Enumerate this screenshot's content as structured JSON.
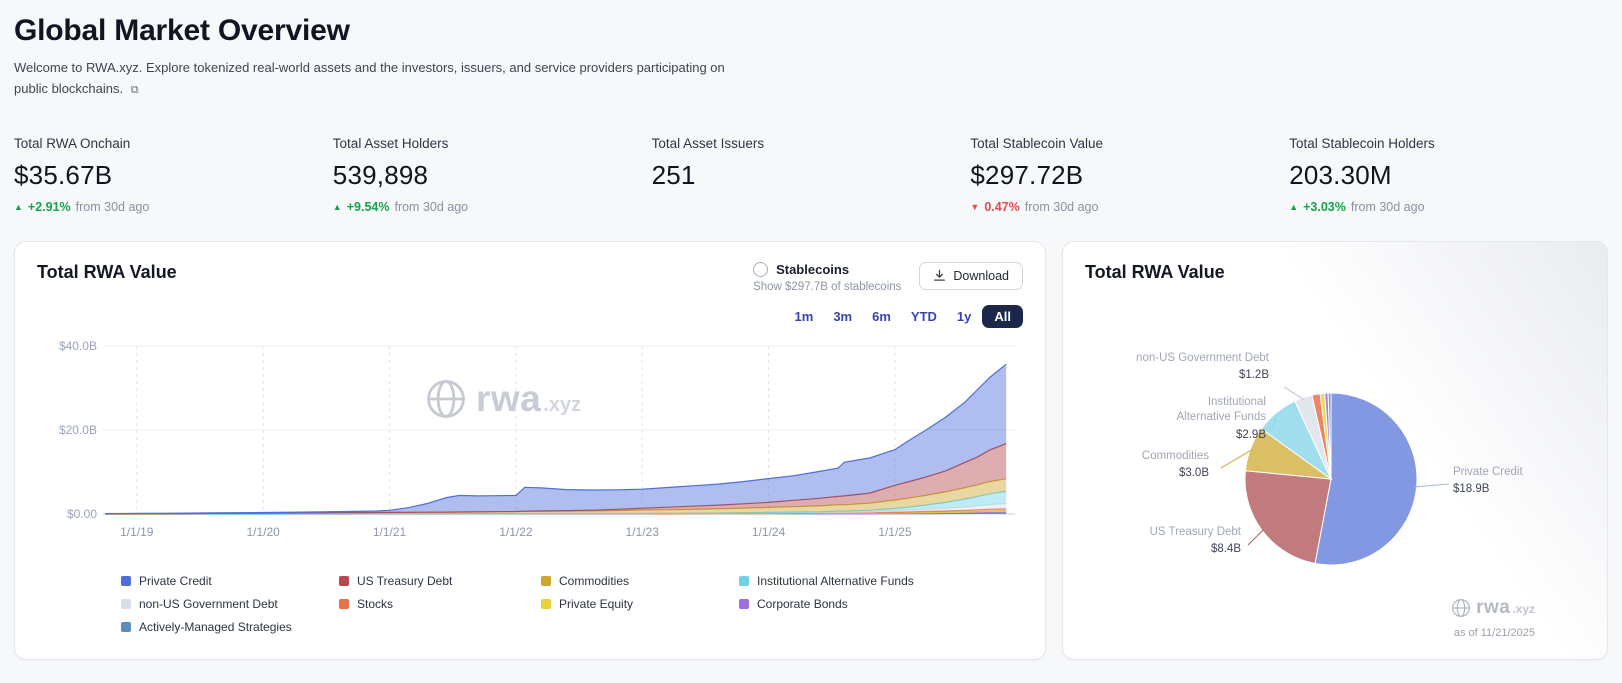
{
  "page": {
    "title": "Global Market Overview",
    "subtitle_line1": "Welcome to RWA.xyz. Explore tokenized real-world assets and the investors, issuers, and service providers participating on",
    "subtitle_line2": "public blockchains."
  },
  "watermark": {
    "brand": "rwa",
    "tld": ".xyz"
  },
  "stats": [
    {
      "label": "Total RWA Onchain",
      "value": "$35.67B",
      "delta": "+2.91%",
      "delta_dir": "up",
      "delta_suffix": "from 30d ago"
    },
    {
      "label": "Total Asset Holders",
      "value": "539,898",
      "delta": "+9.54%",
      "delta_dir": "up",
      "delta_suffix": "from 30d ago"
    },
    {
      "label": "Total Asset Issuers",
      "value": "251",
      "delta": "",
      "delta_dir": "none",
      "delta_suffix": ""
    },
    {
      "label": "Total Stablecoin Value",
      "value": "$297.72B",
      "delta": "0.47%",
      "delta_dir": "down",
      "delta_suffix": "from 30d ago"
    },
    {
      "label": "Total Stablecoin Holders",
      "value": "203.30M",
      "delta": "+3.03%",
      "delta_dir": "up",
      "delta_suffix": "from 30d ago"
    }
  ],
  "left_card": {
    "title": "Total RWA Value",
    "stablecoins_label": "Stablecoins",
    "stablecoins_sub": "Show $297.7B of stablecoins",
    "download_label": "Download",
    "ranges": [
      "1m",
      "3m",
      "6m",
      "YTD",
      "1y",
      "All"
    ],
    "active_range": "All"
  },
  "right_card": {
    "title": "Total RWA Value",
    "as_of": "as of 11/21/2025"
  },
  "legend_columns": [
    [
      {
        "label": "Private Credit",
        "color": "#4e6fd9"
      },
      {
        "label": "non-US Government Debt",
        "color": "#d9dee8"
      },
      {
        "label": "Actively-Managed Strategies",
        "color": "#5d8cbe"
      }
    ],
    [
      {
        "label": "US Treasury Debt",
        "color": "#b5494e"
      },
      {
        "label": "Stocks",
        "color": "#e8714b"
      }
    ],
    [
      {
        "label": "Commodities",
        "color": "#cfa72e"
      },
      {
        "label": "Private Equity",
        "color": "#e8d23c"
      }
    ],
    [
      {
        "label": "Institutional Alternative Funds",
        "color": "#72d2e8"
      },
      {
        "label": "Corporate Bonds",
        "color": "#9a6fe0"
      }
    ]
  ],
  "chart_data": [
    {
      "type": "area",
      "title": "Total RWA Value",
      "stacked": true,
      "grid": true,
      "ylabel": "",
      "xlabel": "",
      "ylim": [
        0,
        40
      ],
      "xlim": [
        2018.78,
        2025.95
      ],
      "y_ticks": [
        "$0.00",
        "$20.0B",
        "$40.0B"
      ],
      "y_tick_values": [
        0,
        20,
        40
      ],
      "x_ticks": [
        "1/1/19",
        "1/1/20",
        "1/1/21",
        "1/1/22",
        "1/1/23",
        "1/1/24",
        "1/1/25"
      ],
      "x_tick_years": [
        2019,
        2020,
        2021,
        2022,
        2023,
        2024,
        2025
      ],
      "x": [
        2018.75,
        2019.0,
        2019.3,
        2019.6,
        2020.0,
        2020.3,
        2020.6,
        2020.9,
        2021.0,
        2021.15,
        2021.3,
        2021.45,
        2021.55,
        2021.7,
        2021.85,
        2022.0,
        2022.07,
        2022.2,
        2022.4,
        2022.6,
        2022.8,
        2023.0,
        2023.2,
        2023.4,
        2023.6,
        2023.8,
        2024.0,
        2024.2,
        2024.4,
        2024.55,
        2024.6,
        2024.8,
        2025.0,
        2025.1,
        2025.25,
        2025.4,
        2025.55,
        2025.65,
        2025.75,
        2025.88
      ],
      "series": [
        {
          "name": "Actively-Managed Strategies",
          "color": "#5d8cbe",
          "values": [
            0,
            0,
            0,
            0,
            0,
            0.005,
            0.005,
            0.01,
            0.01,
            0.01,
            0.01,
            0.01,
            0.01,
            0.01,
            0.01,
            0.01,
            0.01,
            0.01,
            0.01,
            0.01,
            0.01,
            0.01,
            0.01,
            0.02,
            0.02,
            0.02,
            0.03,
            0.03,
            0.04,
            0.04,
            0.04,
            0.04,
            0.07,
            0.07,
            0.09,
            0.11,
            0.13,
            0.15,
            0.17,
            0.19
          ]
        },
        {
          "name": "Corporate Bonds",
          "color": "#9a6fe0",
          "values": [
            0,
            0,
            0,
            0.005,
            0.005,
            0.005,
            0.005,
            0.01,
            0.01,
            0.01,
            0.01,
            0.01,
            0.01,
            0.01,
            0.01,
            0.01,
            0.01,
            0.01,
            0.01,
            0.01,
            0.01,
            0.01,
            0.02,
            0.02,
            0.02,
            0.03,
            0.03,
            0.04,
            0.04,
            0.05,
            0.05,
            0.05,
            0.08,
            0.09,
            0.11,
            0.13,
            0.16,
            0.18,
            0.21,
            0.23
          ]
        },
        {
          "name": "Private Equity",
          "color": "#e8d23c",
          "values": [
            0.01,
            0.01,
            0.01,
            0.01,
            0.01,
            0.01,
            0.01,
            0.01,
            0.01,
            0.01,
            0.01,
            0.01,
            0.01,
            0.01,
            0.01,
            0.01,
            0.02,
            0.02,
            0.02,
            0.02,
            0.02,
            0.02,
            0.02,
            0.03,
            0.03,
            0.04,
            0.04,
            0.05,
            0.06,
            0.06,
            0.06,
            0.07,
            0.11,
            0.12,
            0.15,
            0.17,
            0.21,
            0.24,
            0.27,
            0.3
          ]
        },
        {
          "name": "Stocks",
          "color": "#e8714b",
          "values": [
            0.01,
            0.01,
            0.01,
            0.01,
            0.01,
            0.02,
            0.02,
            0.02,
            0.02,
            0.02,
            0.02,
            0.02,
            0.02,
            0.03,
            0.03,
            0.03,
            0.03,
            0.03,
            0.03,
            0.03,
            0.03,
            0.04,
            0.05,
            0.05,
            0.06,
            0.07,
            0.08,
            0.09,
            0.1,
            0.12,
            0.12,
            0.13,
            0.2,
            0.22,
            0.27,
            0.32,
            0.38,
            0.44,
            0.5,
            0.55
          ]
        },
        {
          "name": "non-US Government Debt",
          "color": "#d9dee8",
          "values": [
            0,
            0,
            0,
            0.01,
            0.01,
            0.01,
            0.01,
            0.02,
            0.02,
            0.02,
            0.02,
            0.03,
            0.03,
            0.03,
            0.03,
            0.04,
            0.04,
            0.04,
            0.04,
            0.04,
            0.04,
            0.05,
            0.06,
            0.08,
            0.09,
            0.11,
            0.14,
            0.16,
            0.19,
            0.21,
            0.21,
            0.24,
            0.38,
            0.43,
            0.53,
            0.62,
            0.77,
            0.91,
            1.06,
            1.2
          ]
        },
        {
          "name": "Institutional Alternative Funds",
          "color": "#72d2e8",
          "values": [
            0,
            0,
            0,
            0,
            0,
            0,
            0,
            0,
            0,
            0,
            0,
            0,
            0,
            0,
            0,
            0,
            0,
            0,
            0,
            0,
            0,
            0,
            0,
            0,
            0,
            0,
            0.05,
            0.08,
            0.1,
            0.2,
            0.22,
            0.35,
            0.5,
            0.7,
            1.0,
            1.4,
            1.9,
            2.2,
            2.6,
            2.9
          ]
        },
        {
          "name": "Commodities",
          "color": "#cfa72e",
          "values": [
            0.03,
            0.05,
            0.08,
            0.1,
            0.15,
            0.2,
            0.25,
            0.28,
            0.3,
            0.33,
            0.35,
            0.38,
            0.4,
            0.42,
            0.45,
            0.48,
            0.5,
            0.52,
            0.55,
            0.6,
            0.7,
            0.8,
            0.85,
            0.9,
            1.0,
            1.1,
            1.2,
            1.3,
            1.4,
            1.5,
            1.5,
            1.7,
            2.0,
            2.1,
            2.3,
            2.5,
            2.7,
            2.8,
            2.9,
            3.0
          ]
        },
        {
          "name": "US Treasury Debt",
          "color": "#b5494e",
          "values": [
            0,
            0,
            0,
            0,
            0,
            0,
            0,
            0,
            0,
            0,
            0,
            0,
            0,
            0,
            0,
            0.02,
            0.05,
            0.1,
            0.15,
            0.2,
            0.3,
            0.45,
            0.6,
            0.75,
            0.9,
            1.05,
            1.2,
            1.5,
            1.8,
            2.0,
            2.1,
            2.4,
            3.5,
            3.9,
            4.4,
            5.0,
            6.0,
            6.6,
            7.5,
            8.4
          ]
        },
        {
          "name": "Private Credit",
          "color": "#4e6fd9",
          "values": [
            0.05,
            0.08,
            0.1,
            0.12,
            0.17,
            0.21,
            0.26,
            0.37,
            0.5,
            1.11,
            2.09,
            3.45,
            3.93,
            3.8,
            3.82,
            3.81,
            5.7,
            5.48,
            5.0,
            4.8,
            4.65,
            4.53,
            4.7,
            4.87,
            5.0,
            5.3,
            5.65,
            5.87,
            6.4,
            6.75,
            8.03,
            8.35,
            8.5,
            9.7,
            11.2,
            12.8,
            14.3,
            16.0,
            17.3,
            18.9
          ]
        }
      ]
    },
    {
      "type": "pie",
      "title": "Total RWA Value",
      "as_of": "as of 11/21/2025",
      "slices": [
        {
          "label": "Private Credit",
          "value": 18.9,
          "value_label": "$18.9B",
          "color": "#6c86de"
        },
        {
          "label": "US Treasury Debt",
          "value": 8.4,
          "value_label": "$8.4B",
          "color": "#b66467"
        },
        {
          "label": "Commodities",
          "value": 3.0,
          "value_label": "$3.0B",
          "color": "#d4b44a"
        },
        {
          "label": "Institutional Alternative Funds",
          "value": 2.9,
          "value_label": "$2.9B",
          "color": "#8fd8ea"
        },
        {
          "label": "non-US Government Debt",
          "value": 1.2,
          "value_label": "$1.2B",
          "color": "#dde2ea"
        },
        {
          "label": "Stocks",
          "value": 0.55,
          "value_label": "",
          "color": "#e8714b"
        },
        {
          "label": "Private Equity",
          "value": 0.3,
          "value_label": "",
          "color": "#e8d23c"
        },
        {
          "label": "Corporate Bonds",
          "value": 0.23,
          "value_label": "",
          "color": "#9a6fe0"
        },
        {
          "label": "Actively-Managed Strategies",
          "value": 0.19,
          "value_label": "",
          "color": "#5d8cbe"
        }
      ]
    }
  ]
}
